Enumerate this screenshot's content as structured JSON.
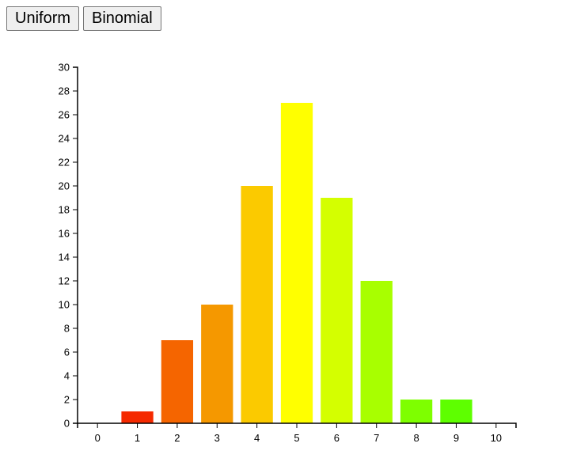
{
  "toolbar": {
    "uniform_label": "Uniform",
    "binomial_label": "Binomial"
  },
  "chart_data": {
    "type": "bar",
    "categories": [
      "0",
      "1",
      "2",
      "3",
      "4",
      "5",
      "6",
      "7",
      "8",
      "9",
      "10"
    ],
    "values": [
      0,
      1,
      7,
      10,
      20,
      27,
      19,
      12,
      2,
      2,
      0
    ],
    "colors": [
      "#ff0000",
      "#f52a00",
      "#f56500",
      "#f59800",
      "#fbca00",
      "#ffff00",
      "#d4ff00",
      "#a8ff00",
      "#7eff00",
      "#5eff00",
      "#3aff00"
    ],
    "ylim": [
      0,
      30
    ],
    "yticks": [
      "0",
      "2",
      "4",
      "6",
      "8",
      "10",
      "12",
      "14",
      "16",
      "18",
      "20",
      "22",
      "24",
      "26",
      "28",
      "30"
    ],
    "title": "",
    "xlabel": "",
    "ylabel": "",
    "grid": false,
    "legend": "none"
  }
}
